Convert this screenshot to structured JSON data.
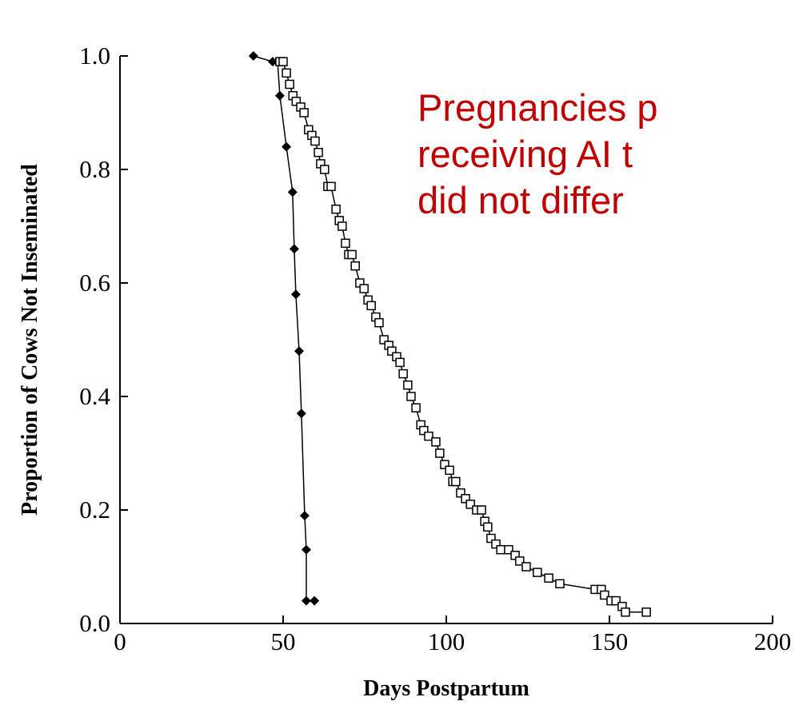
{
  "chart_data": {
    "type": "line",
    "x_label": "Days Postpartum",
    "y_label": "Proportion of Cows Not Inseminated",
    "annotation": [
      "Pregnancies p",
      "receiving AI t",
      "did not differ"
    ],
    "annotation_color": "#c00000",
    "xlim": [
      0,
      200
    ],
    "xticks": [
      0,
      50,
      100,
      150,
      200
    ],
    "ylim": [
      0,
      1
    ],
    "yticks": [
      {
        "value": 0,
        "label": "0.0"
      },
      0.2,
      0.4,
      0.6,
      0.8,
      {
        "value": 1,
        "label": "1.0"
      }
    ],
    "series": [
      {
        "color": "#000000",
        "marker": "diamond",
        "x": [
          40.9,
          46.8,
          48.3,
          49.0,
          51.0,
          52.9,
          53.4,
          53.9,
          54.9,
          55.6,
          56.6,
          57.1,
          57.1,
          59.6
        ],
        "values": [
          1.0,
          0.99,
          0.99,
          0.93,
          0.84,
          0.76,
          0.66,
          0.58,
          0.48,
          0.37,
          0.19,
          0.13,
          0.04,
          0.04
        ]
      },
      {
        "color": "#000000",
        "marker": "square",
        "x": [
          49.0,
          50.0,
          51.0,
          52.0,
          53.0,
          54.0,
          55.4,
          56.4,
          57.8,
          58.8,
          59.8,
          60.8,
          61.5,
          62.7,
          63.7,
          64.7,
          66.2,
          67.2,
          68.1,
          69.1,
          70.1,
          71.1,
          72.1,
          73.5,
          74.8,
          76.0,
          77.0,
          78.4,
          79.4,
          80.9,
          82.4,
          83.3,
          84.8,
          85.8,
          86.8,
          88.2,
          89.2,
          90.7,
          92.2,
          93.1,
          94.6,
          96.8,
          98.0,
          99.5,
          101.0,
          102.0,
          102.9,
          104.4,
          105.9,
          107.4,
          109.3,
          110.8,
          111.8,
          112.7,
          113.7,
          115.2,
          116.7,
          119.1,
          121.1,
          122.5,
          124.5,
          127.9,
          131.4,
          134.8,
          145.6,
          147.5,
          148.5,
          150.5,
          152.0,
          153.9,
          154.9,
          161.3
        ],
        "values": [
          0.99,
          0.99,
          0.97,
          0.95,
          0.93,
          0.92,
          0.91,
          0.9,
          0.87,
          0.86,
          0.85,
          0.83,
          0.81,
          0.8,
          0.77,
          0.77,
          0.73,
          0.71,
          0.7,
          0.67,
          0.65,
          0.65,
          0.63,
          0.6,
          0.59,
          0.57,
          0.56,
          0.54,
          0.53,
          0.5,
          0.49,
          0.48,
          0.47,
          0.46,
          0.44,
          0.42,
          0.4,
          0.38,
          0.35,
          0.34,
          0.33,
          0.32,
          0.3,
          0.28,
          0.27,
          0.25,
          0.25,
          0.23,
          0.22,
          0.21,
          0.2,
          0.2,
          0.18,
          0.17,
          0.15,
          0.14,
          0.13,
          0.13,
          0.12,
          0.11,
          0.1,
          0.09,
          0.08,
          0.07,
          0.06,
          0.06,
          0.05,
          0.04,
          0.04,
          0.03,
          0.02,
          0.02
        ]
      }
    ]
  }
}
